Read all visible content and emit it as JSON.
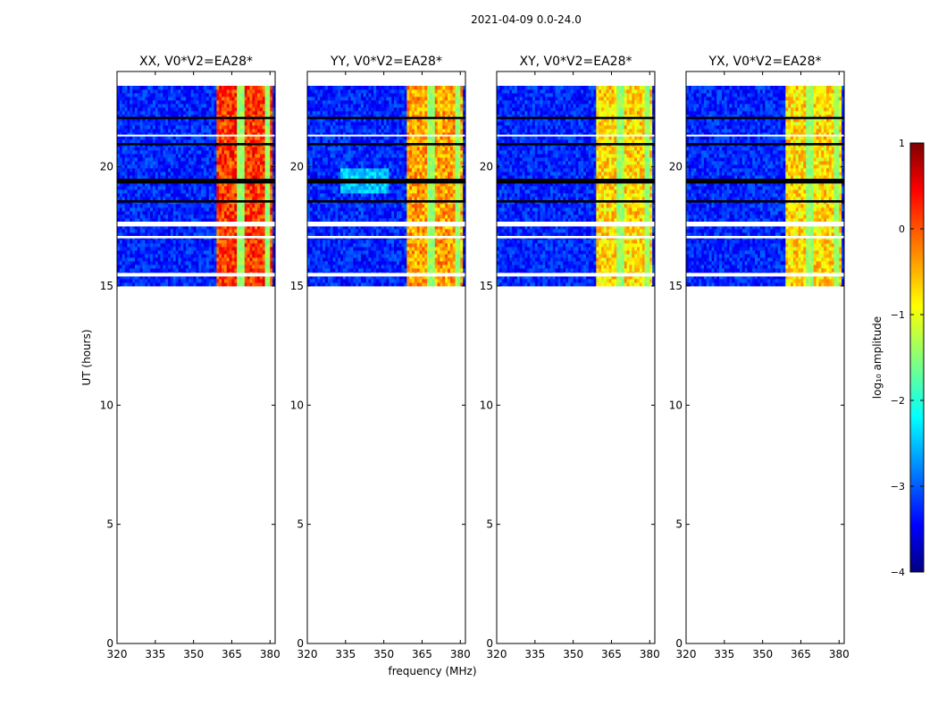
{
  "figure": {
    "suptitle": "2021-04-09 0.0-24.0",
    "xlabel": "frequency (MHz)",
    "ylabel": "UT (hours)"
  },
  "colorbar": {
    "label": "log₁₀ amplitude",
    "range": [
      -4,
      1
    ],
    "ticks": [
      1,
      0,
      -1,
      -2,
      -3,
      -4
    ],
    "tick_labels": [
      "1",
      "0",
      "−1",
      "−2",
      "−3",
      "−4"
    ],
    "colormap": "jet"
  },
  "chart_data": {
    "type": "heatmap",
    "x_range_mhz": [
      320,
      382
    ],
    "y_range_hours": [
      0,
      24
    ],
    "x_ticks": [
      320,
      335,
      350,
      365,
      380
    ],
    "x_tick_labels": [
      "320",
      "335",
      "350",
      "365",
      "380"
    ],
    "y_ticks": [
      0,
      5,
      10,
      15,
      20
    ],
    "y_tick_labels": [
      "0",
      "5",
      "10",
      "15",
      "20"
    ],
    "data_time_range_hours": [
      15.0,
      23.4
    ],
    "high_power_band_mhz": [
      359.5,
      380.5
    ],
    "background_log_amplitude": -3.2,
    "band_log_amplitude": -0.8,
    "gaps_hours": [
      [
        17.5,
        17.7
      ],
      [
        19.3,
        19.5
      ],
      [
        15.4,
        15.55
      ],
      [
        18.5,
        18.6
      ],
      [
        17.0,
        17.1
      ],
      [
        22.0,
        22.1
      ],
      [
        21.3,
        21.35
      ],
      [
        20.9,
        21.0
      ]
    ],
    "panels": [
      {
        "title": "XX, V0*V2=EA28*",
        "polarization": "XX",
        "band_level": 0.1
      },
      {
        "title": "YY, V0*V2=EA28*",
        "polarization": "YY",
        "band_level": -0.4
      },
      {
        "title": "XY, V0*V2=EA28*",
        "polarization": "XY",
        "band_level": -0.7
      },
      {
        "title": "YX, V0*V2=EA28*",
        "polarization": "YX",
        "band_level": -0.7
      }
    ]
  }
}
